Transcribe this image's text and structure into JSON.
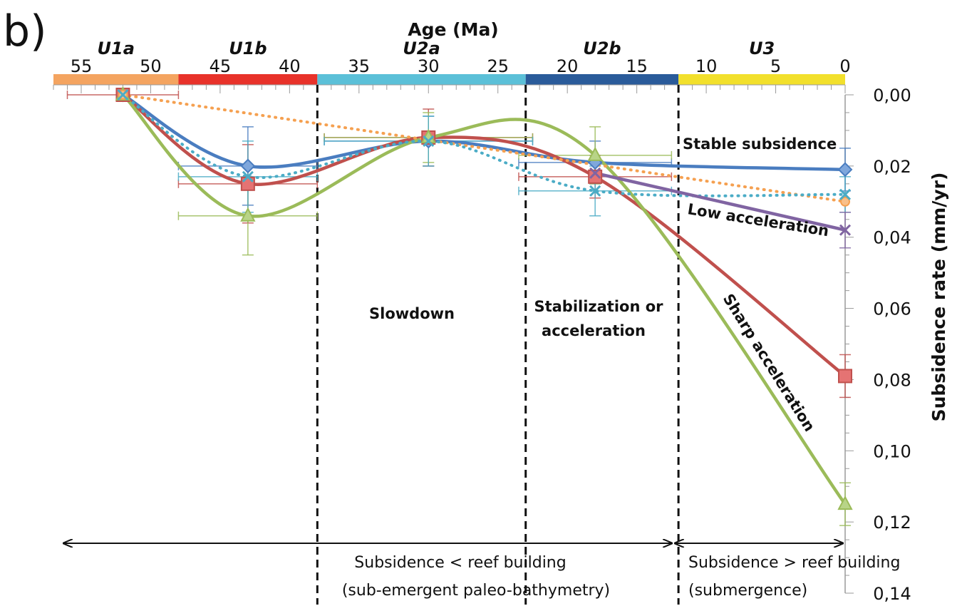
{
  "panel_label": "b)",
  "chart_data": {
    "type": "line",
    "title": "",
    "xlabel": "Age (Ma)",
    "ylabel": "Subsidence rate (mm/yr)",
    "xlim": [
      57,
      0
    ],
    "ylim": [
      0,
      0.14
    ],
    "y_inverted": true,
    "x_ticks": [
      55,
      50,
      45,
      40,
      35,
      30,
      25,
      20,
      15,
      10,
      5,
      0
    ],
    "x_tick_labels": [
      "55",
      "50",
      "45",
      "40",
      "35",
      "30",
      "25",
      "20",
      "15",
      "10",
      "5",
      "0"
    ],
    "y_ticks": [
      0,
      0.02,
      0.04,
      0.06,
      0.08,
      0.1,
      0.12,
      0.14
    ],
    "y_tick_labels": [
      "0,00",
      "0,02",
      "0,04",
      "0,06",
      "0,08",
      "0,10",
      "0,12",
      "0,14"
    ],
    "units": [
      {
        "label": "U1a",
        "start": 57,
        "end": 48,
        "color": "#f4a460"
      },
      {
        "label": "U1b",
        "start": 48,
        "end": 38,
        "color": "#e8322a"
      },
      {
        "label": "U2a",
        "start": 38,
        "end": 23,
        "color": "#5bc0d8"
      },
      {
        "label": "U2b",
        "start": 23,
        "end": 12,
        "color": "#2a5b9a"
      },
      {
        "label": "U3",
        "start": 12,
        "end": 0,
        "color": "#f2e02c"
      }
    ],
    "boundaries": [
      38,
      23,
      12
    ],
    "series": [
      {
        "color": "#4a7dc0",
        "marker": "diamond",
        "style": "solid",
        "x": [
          52,
          43,
          30,
          18,
          0
        ],
        "y": [
          0.0,
          0.02,
          0.013,
          0.019,
          0.021
        ],
        "yerr": [
          0.0,
          0.011,
          0.007,
          0.006,
          0.006
        ],
        "xerr": [
          0,
          5,
          7.5,
          5.5,
          0
        ]
      },
      {
        "color": "#c0504d",
        "marker": "square",
        "style": "solid",
        "x": [
          52,
          43,
          30,
          18,
          0
        ],
        "y": [
          0.0,
          0.025,
          0.012,
          0.023,
          0.079
        ],
        "yerr": [
          0.0,
          0.011,
          0.008,
          0.006,
          0.006
        ],
        "xerr": [
          4,
          5,
          7.5,
          5.5,
          0
        ]
      },
      {
        "color": "#9bbb59",
        "marker": "triangle",
        "style": "solid",
        "x": [
          52,
          43,
          30,
          18,
          0
        ],
        "y": [
          0.0,
          0.034,
          0.012,
          0.017,
          0.115
        ],
        "yerr": [
          0.0,
          0.011,
          0.007,
          0.008,
          0.006
        ],
        "xerr": [
          0,
          5,
          7.5,
          5.5,
          0
        ]
      },
      {
        "color": "#f5a050",
        "marker": "circle",
        "style": "dotted",
        "x": [
          52,
          0
        ],
        "y": [
          0.0,
          0.03
        ],
        "yerr": [
          0,
          0
        ],
        "xerr": [
          0,
          0
        ]
      },
      {
        "color": "#4bacc6",
        "marker": "x",
        "style": "dotted",
        "x": [
          52,
          43,
          30,
          18,
          0
        ],
        "y": [
          0.0,
          0.023,
          0.013,
          0.027,
          0.028
        ],
        "yerr": [
          0.0,
          0.01,
          0.007,
          0.007,
          0.005
        ],
        "xerr": [
          0,
          5,
          7.5,
          5.5,
          0
        ]
      },
      {
        "color": "#8064a2",
        "marker": "x",
        "style": "solid",
        "x": [
          18,
          0
        ],
        "y": [
          0.022,
          0.038
        ],
        "yerr": [
          0,
          0.005
        ],
        "xerr": [
          0,
          0
        ]
      }
    ],
    "annotations": [
      {
        "text": "Stable subsidence"
      },
      {
        "text": "Low acceleration"
      },
      {
        "text": "Sharp acceleration"
      },
      {
        "text": "Slowdown"
      },
      {
        "text": "Stabilization or"
      },
      {
        "text": "acceleration"
      }
    ],
    "bottom_labels": {
      "left_line1": "Subsidence < reef building",
      "left_line2": "(sub-emergent paleo-bathymetry)",
      "right_line1": "Subsidence > reef building",
      "right_line2": "(submergence)"
    }
  }
}
